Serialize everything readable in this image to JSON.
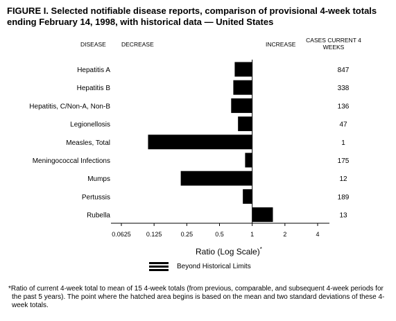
{
  "figure": {
    "title": "FIGURE I. Selected notifiable disease reports, comparison of provisional 4-week totals ending February 14, 1998, with historical data — United States",
    "header_disease": "DISEASE",
    "header_decrease": "DECREASE",
    "header_increase": "INCREASE",
    "header_cases": "CASES CURRENT 4 WEEKS",
    "xlabel_text": "Ratio (Log Scale)",
    "xlabel_mark": "*",
    "legend_label": "Beyond Historical Limits",
    "footnote": "*Ratio of current 4-week total to mean of 15 4-week totals (from previous, comparable, and subsequent 4-week periods for the past 5 years). The point where the hatched area begins is based on the mean and two standard deviations of these 4-week totals."
  },
  "chart_data": {
    "type": "bar",
    "orientation": "horizontal",
    "scale": "log2",
    "reference": 1,
    "xlim": [
      0.0625,
      4
    ],
    "ticks": [
      "0.0625",
      "0.125",
      "0.25",
      "0.5",
      "1",
      "2",
      "4"
    ],
    "tick_values": [
      0.0625,
      0.125,
      0.25,
      0.5,
      1,
      2,
      4
    ],
    "categories": [
      "Hepatitis A",
      "Hepatitis B",
      "Hepatitis, C/Non-A, Non-B",
      "Legionellosis",
      "Measles, Total",
      "Meningococcal Infections",
      "Mumps",
      "Pertussis",
      "Rubella"
    ],
    "values": [
      0.69,
      0.67,
      0.64,
      0.74,
      0.11,
      0.86,
      0.22,
      0.82,
      1.55
    ],
    "cases": [
      "847",
      "338",
      "136",
      "47",
      "1",
      "175",
      "12",
      "189",
      "13"
    ]
  }
}
